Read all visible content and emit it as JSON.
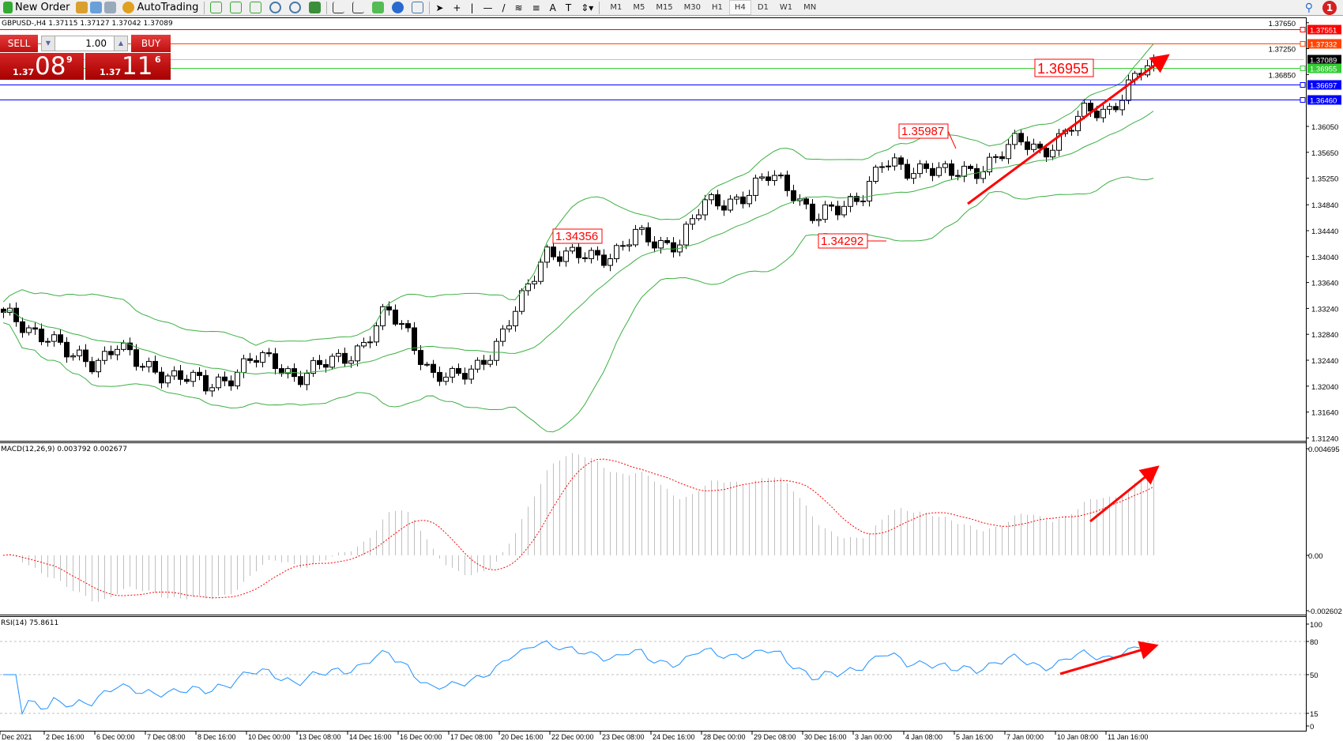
{
  "toolbar": {
    "new_order": "New Order",
    "autotrading": "AutoTrading",
    "timeframes": [
      "M1",
      "M5",
      "M15",
      "M30",
      "H1",
      "H4",
      "D1",
      "W1",
      "MN"
    ],
    "active_timeframe": "H4",
    "notification_count": "1",
    "tool_letter": "A"
  },
  "chart": {
    "header": "GBPUSD-,H4  1.37115 1.37127 1.37042 1.37089",
    "symbol": "GBPUSD-",
    "timeframe": "H4"
  },
  "trade_panel": {
    "sell_label": "SELL",
    "buy_label": "BUY",
    "lot": "1.00",
    "sell_prefix": "1.37",
    "sell_big": "08",
    "sell_pip": "9",
    "buy_prefix": "1.37",
    "buy_big": "11",
    "buy_pip": "6"
  },
  "price_axis": {
    "ticks": [
      "1.37650",
      "1.37250",
      "1.36850",
      "1.36050",
      "1.35650",
      "1.35250",
      "1.34840",
      "1.34440",
      "1.34040",
      "1.33640",
      "1.33240",
      "1.32840",
      "1.32440",
      "1.32040",
      "1.31640",
      "1.31240"
    ],
    "range": [
      1.3124,
      1.3765
    ]
  },
  "levels": [
    {
      "price": "1.37551",
      "color": "#ff0000"
    },
    {
      "price": "1.37332",
      "color": "#ff4500"
    },
    {
      "price": "1.37089",
      "color": "#000000",
      "line": "#c0c0c0"
    },
    {
      "price": "1.36955",
      "color": "#32cd32"
    },
    {
      "price": "1.36697",
      "color": "#0000ff"
    },
    {
      "price": "1.36460",
      "color": "#0000ff"
    }
  ],
  "annotations": [
    {
      "text": "1.36955",
      "price": 1.36955,
      "big": true
    },
    {
      "text": "1.35987",
      "price": 1.35987
    },
    {
      "text": "1.34356",
      "price": 1.34356
    },
    {
      "text": "1.34292",
      "price": 1.34292
    }
  ],
  "macd": {
    "label": "MACD(12,26,9) 0.003792 0.002677",
    "ticks": [
      "0.004695",
      "0.00",
      "-0.002602"
    ],
    "range": [
      -0.002602,
      0.004695
    ]
  },
  "rsi": {
    "label": "RSI(14) 75.8611",
    "ticks": [
      "100",
      "80",
      "50",
      "15",
      "0"
    ],
    "levels": [
      80,
      50,
      15
    ]
  },
  "time_axis": [
    "Dec 2021",
    "2 Dec 16:00",
    "6 Dec 00:00",
    "7 Dec 08:00",
    "8 Dec 16:00",
    "10 Dec 00:00",
    "13 Dec 08:00",
    "14 Dec 16:00",
    "16 Dec 00:00",
    "17 Dec 08:00",
    "20 Dec 16:00",
    "22 Dec 00:00",
    "23 Dec 08:00",
    "24 Dec 16:00",
    "28 Dec 00:00",
    "29 Dec 08:00",
    "30 Dec 16:00",
    "3 Jan 00:00",
    "4 Jan 08:00",
    "5 Jan 16:00",
    "7 Jan 00:00",
    "10 Jan 08:00",
    "11 Jan 16:00"
  ],
  "colors": {
    "bands": "#3cb043",
    "macd_hist": "#c0c0c0",
    "macd_signal": "#ff0000",
    "rsi": "#1e90ff",
    "arrow": "#ff0000"
  },
  "chart_data": {
    "type": "candlestick",
    "closes_approx": [
      1.3312,
      1.3292,
      1.3285,
      1.3246,
      1.3239,
      1.3272,
      1.3233,
      1.3226,
      1.322,
      1.32,
      1.322,
      1.3246,
      1.3239,
      1.322,
      1.3233,
      1.3246,
      1.3272,
      1.3318,
      1.3285,
      1.322,
      1.3213,
      1.3239,
      1.3272,
      1.3338,
      1.3416,
      1.3403,
      1.3403,
      1.341,
      1.3436,
      1.3423,
      1.343,
      1.3482,
      1.3489,
      1.3502,
      1.3528,
      1.3508,
      1.3462,
      1.3475,
      1.3502,
      1.3548,
      1.3534,
      1.3548,
      1.3528,
      1.3534,
      1.3561,
      1.358,
      1.3567,
      1.3593,
      1.3626,
      1.3632,
      1.3672,
      1.37089
    ],
    "indicators": [
      "Bollinger Bands",
      "MACD(12,26,9)",
      "RSI(14)"
    ]
  }
}
